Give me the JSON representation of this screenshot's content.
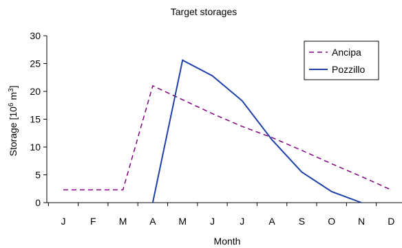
{
  "chart_data": {
    "type": "line",
    "title": "Target storages",
    "xlabel": "Month",
    "ylabel_prefix": "Storage [10",
    "ylabel_sup1": "6",
    "ylabel_mid": " m",
    "ylabel_sup2": "3",
    "ylabel_suffix": "]",
    "categories": [
      "J",
      "F",
      "M",
      "A",
      "M",
      "J",
      "J",
      "A",
      "S",
      "O",
      "N",
      "D"
    ],
    "ylim": [
      0,
      30
    ],
    "yticks": [
      "0",
      "5",
      "10",
      "15",
      "20",
      "25",
      "30"
    ],
    "grid": false,
    "legend_position": "top-right",
    "series": [
      {
        "name": "Ancipa",
        "color": "#800080",
        "dash": true,
        "points": [
          [
            "J",
            2.3
          ],
          [
            "F",
            2.3
          ],
          [
            "M",
            2.3
          ],
          [
            "A",
            21.0
          ],
          [
            "M",
            18.5
          ],
          [
            "J",
            16.0
          ],
          [
            "J",
            13.7
          ],
          [
            "A",
            11.7
          ],
          [
            "S",
            9.4
          ],
          [
            "O",
            7.0
          ],
          [
            "N",
            4.7
          ],
          [
            "D",
            2.3
          ]
        ],
        "x_index": [
          0,
          1,
          2,
          3,
          4,
          5,
          6,
          7,
          8,
          9,
          10,
          11
        ]
      },
      {
        "name": "Pozzillo",
        "color": "#1f3fa8",
        "dash": false,
        "points": [
          [
            "A",
            0
          ],
          [
            "M",
            25.6
          ],
          [
            "J",
            22.8
          ],
          [
            "J",
            18.3
          ],
          [
            "A",
            11.3
          ],
          [
            "S",
            5.5
          ],
          [
            "O",
            2.0
          ],
          [
            "N",
            0
          ]
        ],
        "x_index": [
          3,
          4,
          5,
          6,
          7,
          8,
          9,
          10
        ]
      }
    ]
  }
}
